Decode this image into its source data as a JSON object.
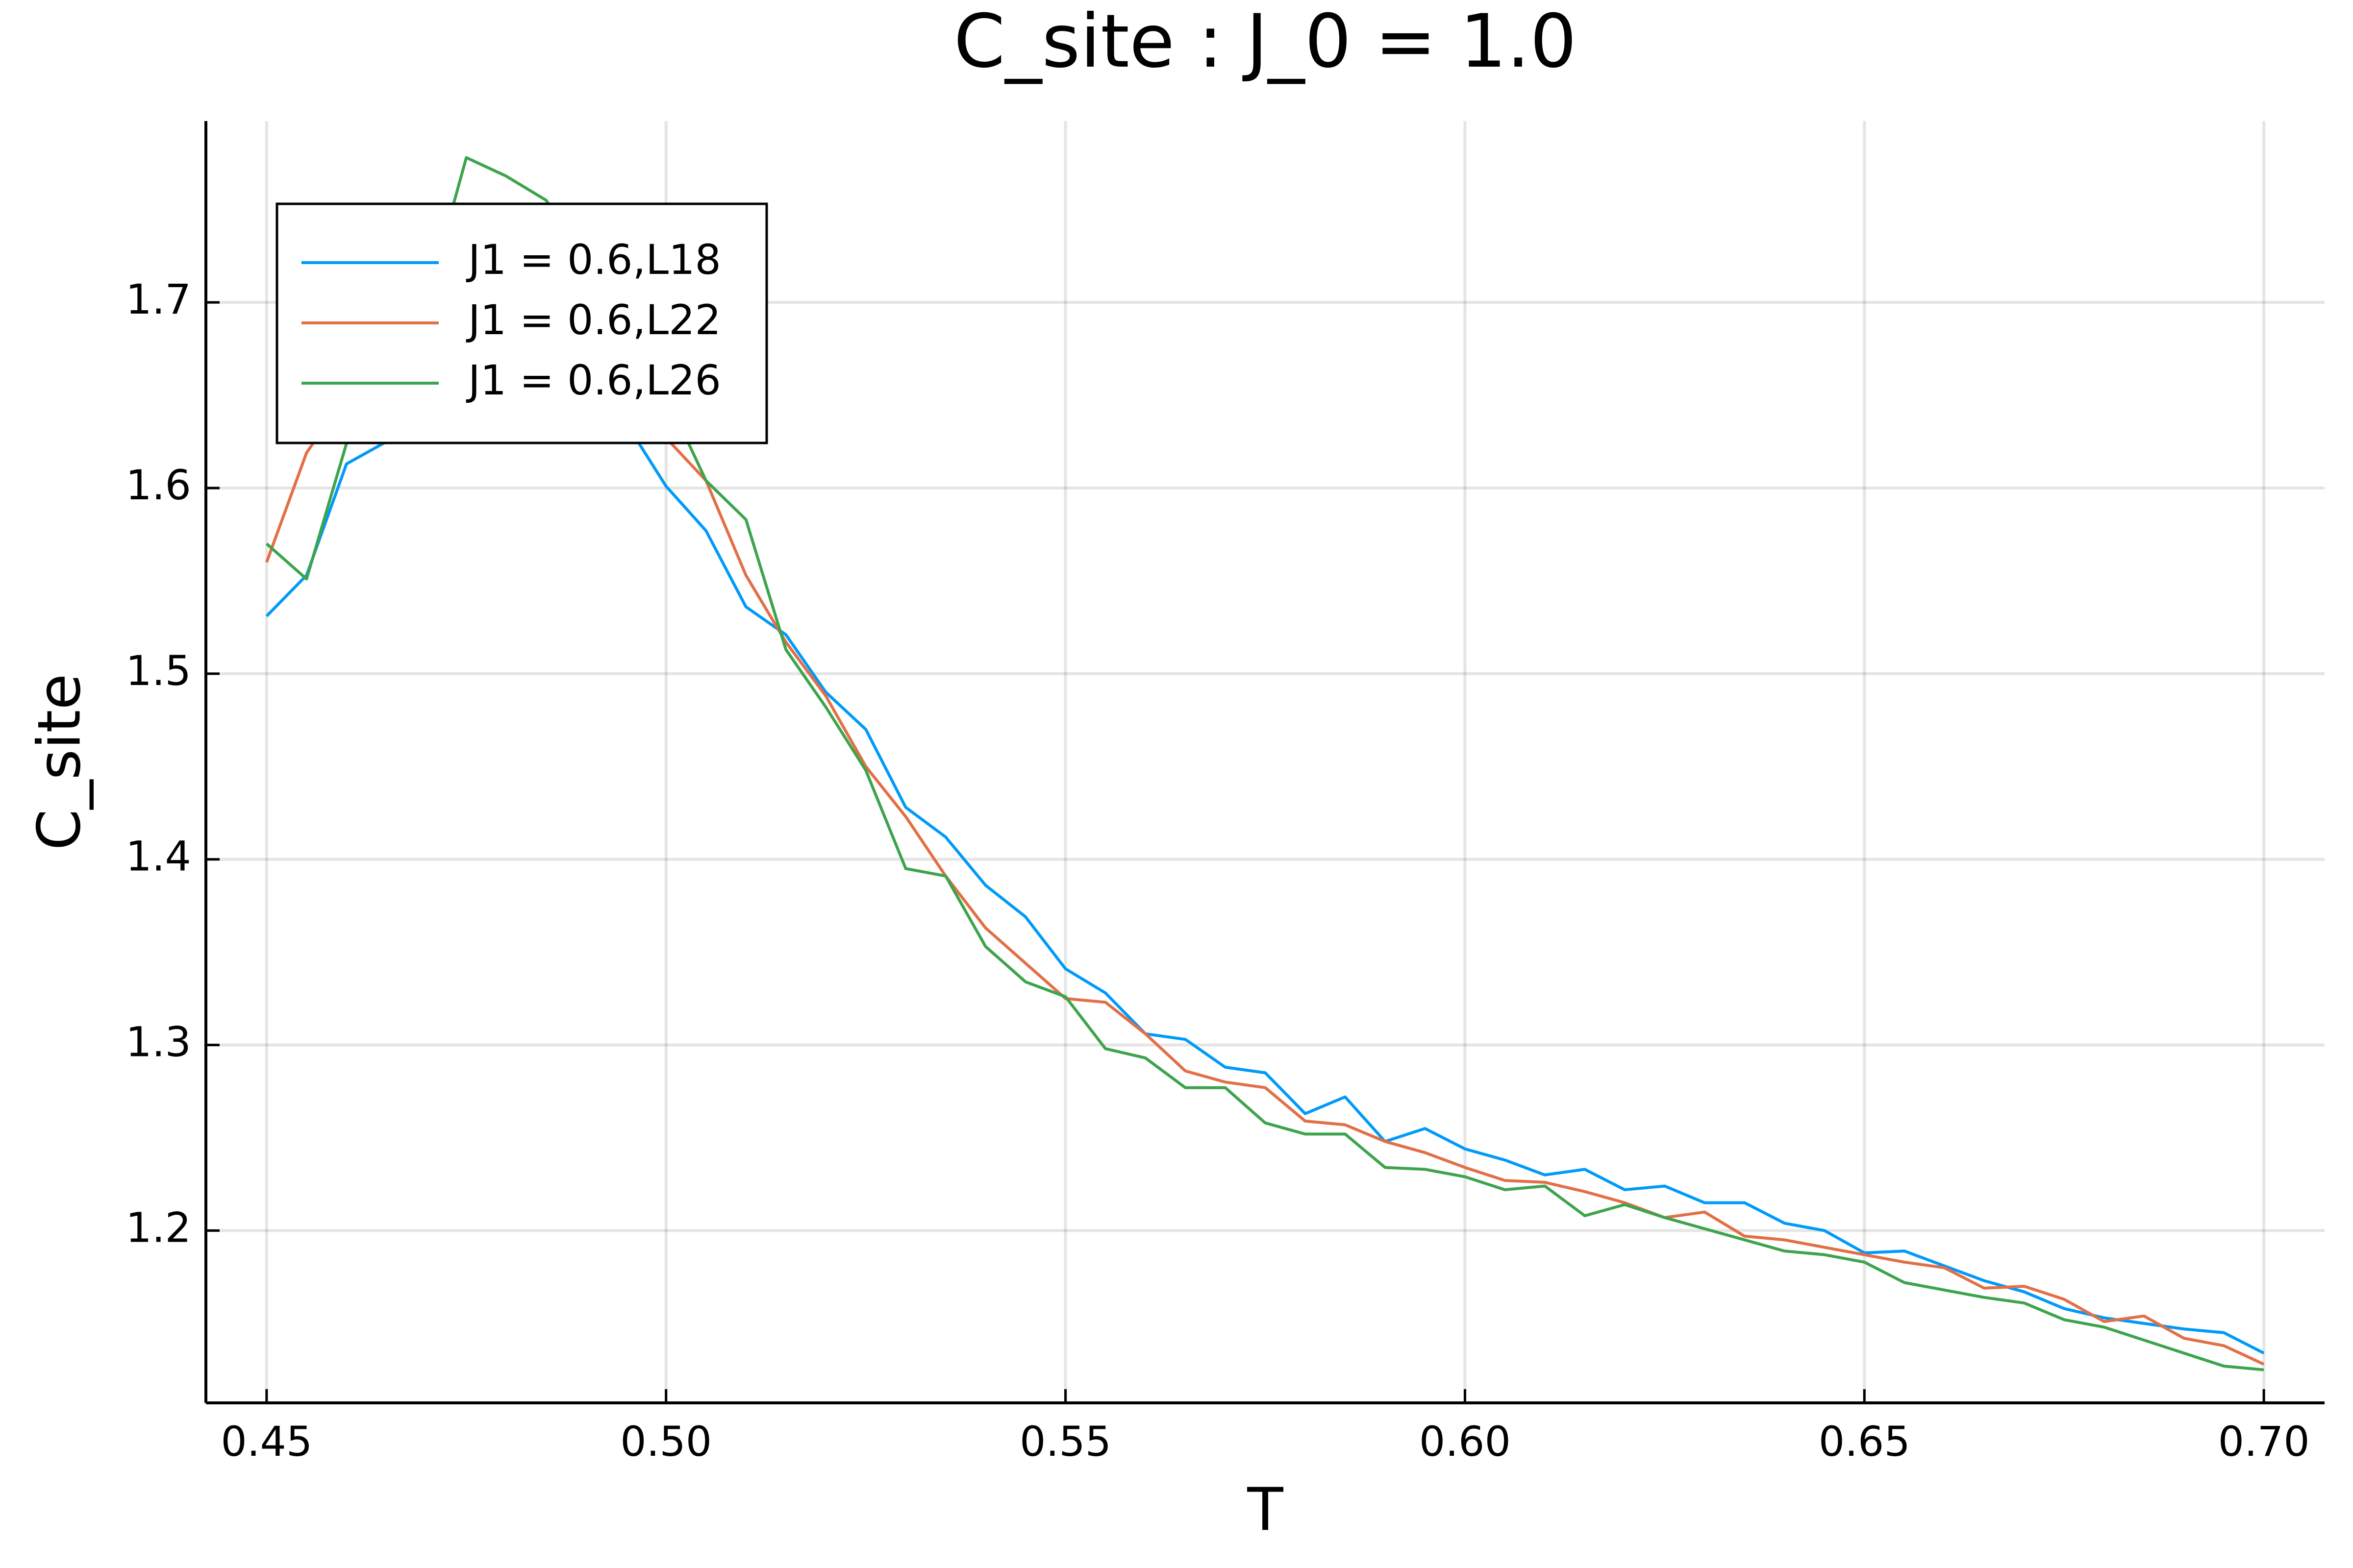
{
  "chart_data": {
    "type": "line",
    "title": "C_site : J_0 = 1.0",
    "x_label": "T",
    "y_label": "C_site",
    "x": [
      0.45,
      0.455,
      0.46,
      0.465,
      0.47,
      0.475,
      0.48,
      0.485,
      0.49,
      0.495,
      0.5,
      0.505,
      0.51,
      0.515,
      0.52,
      0.525,
      0.53,
      0.535,
      0.54,
      0.545,
      0.55,
      0.555,
      0.56,
      0.565,
      0.57,
      0.575,
      0.58,
      0.585,
      0.59,
      0.595,
      0.6,
      0.605,
      0.61,
      0.615,
      0.62,
      0.625,
      0.63,
      0.635,
      0.64,
      0.645,
      0.65,
      0.655,
      0.66,
      0.665,
      0.67,
      0.675,
      0.68,
      0.685,
      0.69,
      0.695,
      0.7
    ],
    "series": [
      {
        "name": "J1 = 0.6,L18",
        "color": "#009af9",
        "values": [
          1.531,
          1.553,
          1.613,
          1.625,
          1.64,
          1.66,
          1.67,
          1.67,
          1.66,
          1.635,
          1.601,
          1.577,
          1.536,
          1.521,
          1.49,
          1.47,
          1.428,
          1.412,
          1.386,
          1.369,
          1.341,
          1.328,
          1.306,
          1.303,
          1.288,
          1.285,
          1.263,
          1.272,
          1.248,
          1.255,
          1.244,
          1.238,
          1.23,
          1.233,
          1.222,
          1.224,
          1.215,
          1.215,
          1.204,
          1.2,
          1.188,
          1.189,
          1.181,
          1.173,
          1.167,
          1.158,
          1.153,
          1.15,
          1.147,
          1.145,
          1.134
        ]
      },
      {
        "name": "J1 = 0.6,L22",
        "color": "#e26f46",
        "values": [
          1.56,
          1.619,
          1.65,
          1.67,
          1.69,
          1.7,
          1.7,
          1.69,
          1.68,
          1.66,
          1.627,
          1.604,
          1.553,
          1.517,
          1.488,
          1.45,
          1.423,
          1.391,
          1.363,
          1.344,
          1.325,
          1.323,
          1.306,
          1.286,
          1.28,
          1.277,
          1.259,
          1.257,
          1.248,
          1.242,
          1.234,
          1.227,
          1.226,
          1.221,
          1.215,
          1.207,
          1.21,
          1.197,
          1.195,
          1.191,
          1.187,
          1.183,
          1.18,
          1.169,
          1.17,
          1.163,
          1.151,
          1.154,
          1.142,
          1.138,
          1.128
        ]
      },
      {
        "name": "J1 = 0.6,L26",
        "color": "#3da44d",
        "values": [
          1.57,
          1.551,
          1.624,
          1.66,
          1.7,
          1.778,
          1.768,
          1.755,
          1.72,
          1.69,
          1.65,
          1.604,
          1.583,
          1.513,
          1.482,
          1.448,
          1.395,
          1.391,
          1.353,
          1.334,
          1.326,
          1.298,
          1.293,
          1.277,
          1.277,
          1.258,
          1.252,
          1.252,
          1.234,
          1.233,
          1.229,
          1.222,
          1.224,
          1.208,
          1.214,
          1.207,
          1.201,
          1.195,
          1.189,
          1.187,
          1.183,
          1.172,
          1.168,
          1.164,
          1.161,
          1.152,
          1.148,
          1.141,
          1.134,
          1.127,
          1.125
        ]
      }
    ],
    "xlim": [
      0.4424,
      0.7076
    ],
    "ylim": [
      1.1072,
      1.7977
    ],
    "xticks": [
      {
        "value": 0.45,
        "label": "0.45"
      },
      {
        "value": 0.5,
        "label": "0.50"
      },
      {
        "value": 0.55,
        "label": "0.55"
      },
      {
        "value": 0.6,
        "label": "0.60"
      },
      {
        "value": 0.65,
        "label": "0.65"
      },
      {
        "value": 0.7,
        "label": "0.70"
      }
    ],
    "yticks": [
      1.2,
      1.3,
      1.4,
      1.5,
      1.6,
      1.7
    ],
    "grid": true,
    "legend": "top-left"
  }
}
